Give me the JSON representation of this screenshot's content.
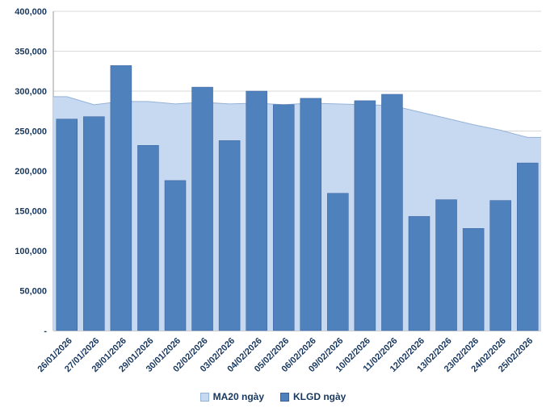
{
  "chart_data": {
    "type": "bar",
    "title": "",
    "categories": [
      "26/01/2026",
      "27/01/2026",
      "28/01/2026",
      "29/01/2026",
      "30/01/2026",
      "02/02/2026",
      "03/02/2026",
      "04/02/2026",
      "05/02/2026",
      "06/02/2026",
      "09/02/2026",
      "10/02/2026",
      "11/02/2026",
      "12/02/2026",
      "13/02/2026",
      "23/02/2026",
      "24/02/2026",
      "25/02/2026"
    ],
    "series": [
      {
        "name": "MA20 ngày",
        "type": "area",
        "color": "#C6D9F1",
        "stroke": "#95B3D7",
        "values": [
          293000,
          283000,
          287000,
          287000,
          284000,
          286000,
          284000,
          285000,
          283000,
          285000,
          284000,
          283000,
          282000,
          274000,
          266000,
          258000,
          251000,
          242000
        ]
      },
      {
        "name": "KLGD ngày",
        "type": "bar",
        "color": "#4F81BD",
        "stroke": "#38609C",
        "values": [
          265000,
          268000,
          332000,
          232000,
          188000,
          305000,
          238000,
          300000,
          283000,
          291000,
          172000,
          288000,
          296000,
          143000,
          164000,
          128000,
          163000,
          210000
        ]
      }
    ],
    "ylim": [
      0,
      400000
    ],
    "ytick_step": 50000,
    "ytick_values": [
      0,
      50000,
      100000,
      150000,
      200000,
      250000,
      300000,
      350000,
      400000
    ],
    "ytick_labels": [
      "-",
      "50,000",
      "100,000",
      "150,000",
      "200,000",
      "250,000",
      "300,000",
      "350,000",
      "400,000"
    ],
    "grid": true,
    "legend_position": "bottom"
  },
  "colors": {
    "bar_fill": "#4F81BD",
    "area_fill": "#C6D9F1",
    "area_stroke": "#95B3D7",
    "grid_line": "#D9D9D9",
    "axis_line": "#9A9A9A",
    "tick_text": "#17375E",
    "background": "#FFFFFF"
  }
}
